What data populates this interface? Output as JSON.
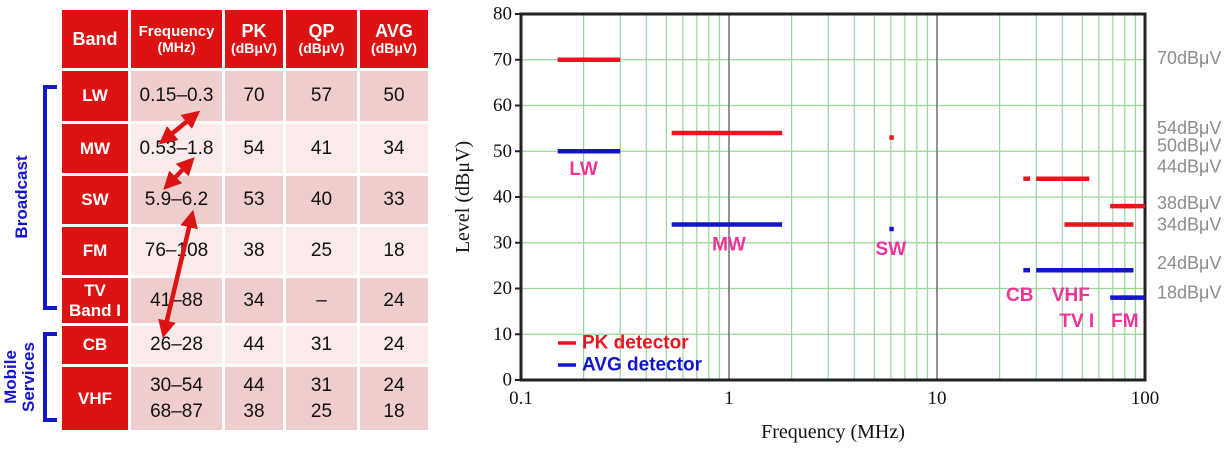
{
  "colors": {
    "header_red": "#dd1212",
    "row_dark": "#f0cdcd",
    "row_light": "#faeaea",
    "bracket_blue": "#1515cc",
    "pk_red": "#e8141e",
    "avg_blue": "#1414cc",
    "band_label_magenta": "#ee3399",
    "grid_green": "#9ad69a",
    "decade_gray": "#777777",
    "right_label_gray": "#8c8c8c",
    "arrow_red": "#dd1414"
  },
  "table": {
    "headers": [
      {
        "key": "band",
        "top": "Band",
        "sub": ""
      },
      {
        "key": "freq",
        "top": "Frequency",
        "sub": "(MHz)"
      },
      {
        "key": "pk",
        "top": "PK",
        "sub": "(dBμV)"
      },
      {
        "key": "qp",
        "top": "QP",
        "sub": "(dBμV)"
      },
      {
        "key": "avg",
        "top": "AVG",
        "sub": "(dBμV)"
      }
    ],
    "rows": [
      {
        "band": "LW",
        "freq": "0.15–0.3",
        "pk": "70",
        "qp": "57",
        "avg": "50",
        "shade": "dark"
      },
      {
        "band": "MW",
        "freq": "0.53–1.8",
        "pk": "54",
        "qp": "41",
        "avg": "34",
        "shade": "light"
      },
      {
        "band": "SW",
        "freq": "5.9–6.2",
        "pk": "53",
        "qp": "40",
        "avg": "33",
        "shade": "dark"
      },
      {
        "band": "FM",
        "freq": "76–108",
        "pk": "38",
        "qp": "25",
        "avg": "18",
        "shade": "light"
      },
      {
        "band": "TV\nBand I",
        "freq": "41–88",
        "pk": "34",
        "qp": "–",
        "avg": "24",
        "shade": "dark"
      },
      {
        "band": "CB",
        "freq": "26–28",
        "pk": "44",
        "qp": "31",
        "avg": "24",
        "shade": "light"
      },
      {
        "band": "VHF",
        "freq": "30–54\n68–87",
        "pk": "44\n38",
        "qp": "31\n25",
        "avg": "24\n18",
        "shade": "dark"
      }
    ],
    "groups": [
      {
        "label": "Broadcast"
      },
      {
        "label": "Mobile\nServices"
      }
    ],
    "overlap_arrows": [
      {
        "from_band": "LW",
        "to_band": "MW"
      },
      {
        "from_band": "MW",
        "to_band": "SW"
      },
      {
        "from_band": "SW",
        "to_band": "CB"
      }
    ]
  },
  "chart_data": {
    "type": "line",
    "title": "",
    "xlabel": "Frequency (MHz)",
    "ylabel": "Level (dBμV)",
    "xscale": "log",
    "xlim": [
      0.1,
      100
    ],
    "ylim": [
      0,
      80
    ],
    "x_ticks": [
      {
        "label": "0.1",
        "value": 0.1
      },
      {
        "label": "1",
        "value": 1
      },
      {
        "label": "10",
        "value": 10
      },
      {
        "label": "100",
        "value": 100
      }
    ],
    "y_ticks": [
      0,
      10,
      20,
      30,
      40,
      50,
      60,
      70,
      80
    ],
    "grid": true,
    "legend_position": "bottom-left",
    "series": [
      {
        "name": "PK detector",
        "color": "#e8141e",
        "segments": [
          {
            "band": "LW",
            "x1": 0.15,
            "x2": 0.3,
            "level": 70
          },
          {
            "band": "MW",
            "x1": 0.53,
            "x2": 1.8,
            "level": 54
          },
          {
            "band": "SW",
            "x1": 5.9,
            "x2": 6.2,
            "level": 53
          },
          {
            "band": "CB",
            "x1": 26,
            "x2": 28,
            "level": 44
          },
          {
            "band": "VHF",
            "x1": 30,
            "x2": 54,
            "level": 44
          },
          {
            "band": "TV Band I",
            "x1": 41,
            "x2": 88,
            "level": 34
          },
          {
            "band": "VHF",
            "x1": 68,
            "x2": 87,
            "level": 38
          },
          {
            "band": "FM",
            "x1": 76,
            "x2": 100,
            "level": 38
          }
        ]
      },
      {
        "name": "AVG detector",
        "color": "#1414cc",
        "segments": [
          {
            "band": "LW",
            "x1": 0.15,
            "x2": 0.3,
            "level": 50
          },
          {
            "band": "MW",
            "x1": 0.53,
            "x2": 1.8,
            "level": 34
          },
          {
            "band": "SW",
            "x1": 5.9,
            "x2": 6.2,
            "level": 33
          },
          {
            "band": "CB",
            "x1": 26,
            "x2": 28,
            "level": 24
          },
          {
            "band": "VHF",
            "x1": 30,
            "x2": 54,
            "level": 24
          },
          {
            "band": "TV Band I",
            "x1": 41,
            "x2": 88,
            "level": 24
          },
          {
            "band": "VHF",
            "x1": 68,
            "x2": 87,
            "level": 18
          },
          {
            "band": "FM",
            "x1": 76,
            "x2": 100,
            "level": 18
          }
        ]
      }
    ],
    "band_labels": [
      {
        "text": "LW",
        "f": 0.2,
        "level": 46
      },
      {
        "text": "MW",
        "f": 1.0,
        "level": 29.5
      },
      {
        "text": "SW",
        "f": 6.0,
        "level": 28.5
      },
      {
        "text": "CB",
        "f": 25,
        "level": 18.5
      },
      {
        "text": "VHF",
        "f": 44,
        "level": 18.5
      },
      {
        "text": "TV I",
        "f": 47,
        "level": 12.8
      },
      {
        "text": "FM",
        "f": 80,
        "level": 12.8
      }
    ],
    "right_labels": [
      {
        "text": "70dBμV",
        "level": 70
      },
      {
        "text": "54dBμV",
        "level": 54
      },
      {
        "text": "50dBμV",
        "level": 50
      },
      {
        "text": "44dBμV",
        "level": 44
      },
      {
        "text": "38dBμV",
        "level": 38
      },
      {
        "text": "34dBμV",
        "level": 34
      },
      {
        "text": "24dBμV",
        "level": 24
      },
      {
        "text": "18dBμV",
        "level": 18
      }
    ]
  }
}
